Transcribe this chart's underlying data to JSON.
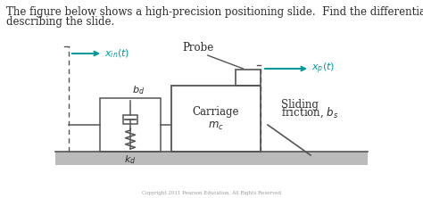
{
  "title_line1": "The figure below shows a high-precision positioning slide.  Find the differential equations",
  "title_line2": "describing the slide.",
  "title_fontsize": 8.5,
  "bg_color": "#ffffff",
  "text_color": "#2b2b2b",
  "arrow_color": "#009999",
  "diagram_color": "#555555",
  "ground_facecolor": "#bbbbbb",
  "xin_label": "$x_{in}(t)$",
  "xp_label": "$x_p(t)$",
  "probe_label": "Probe",
  "carriage_text1": "Carriage",
  "carriage_text2": "$m_c$",
  "bd_label": "$b_d$",
  "kd_label": "$k_d$",
  "sliding_label1": "Sliding",
  "sliding_label2": "friction, $b_s$",
  "copyright_text": "Copyright 2011 Pearson Education. All Rights Reserved"
}
